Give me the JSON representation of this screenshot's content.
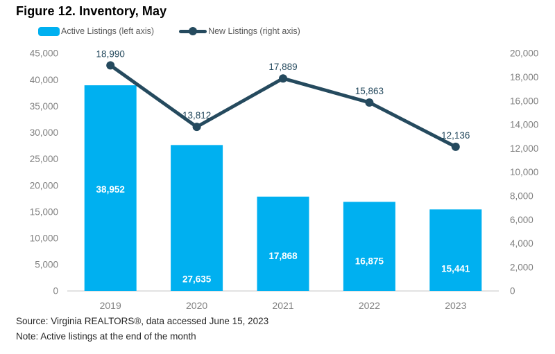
{
  "title": "Figure 12. Inventory, May",
  "legend": {
    "active": "Active Listings (left axis)",
    "new": "New Listings (right axis)"
  },
  "colors": {
    "bar": "#00B0F0",
    "line": "#254A5E",
    "axis_text": "#808080",
    "bar_label": "#FFFFFF",
    "line_label": "#254A5E",
    "axis_line": "#D9D9D9",
    "legend_text": "#595959"
  },
  "chart_data": {
    "type": "bar+line combo",
    "categories": [
      "2019",
      "2020",
      "2021",
      "2022",
      "2023"
    ],
    "series": [
      {
        "name": "Active Listings (left axis)",
        "type": "bar",
        "axis": "left",
        "values": [
          38952,
          27635,
          17868,
          16875,
          15441
        ]
      },
      {
        "name": "New Listings (right axis)",
        "type": "line",
        "axis": "right",
        "values": [
          18990,
          13812,
          17889,
          15863,
          12136
        ]
      }
    ],
    "left_axis": {
      "min": 0,
      "max": 45000,
      "step": 5000
    },
    "right_axis": {
      "min": 0,
      "max": 20000,
      "step": 2000
    },
    "grid": false,
    "legend_position": "top",
    "data_labels": true
  },
  "source": "Source: Virginia REALTORS®, data accessed June 15, 2023",
  "note": "Note: Active listings at the end of the month"
}
